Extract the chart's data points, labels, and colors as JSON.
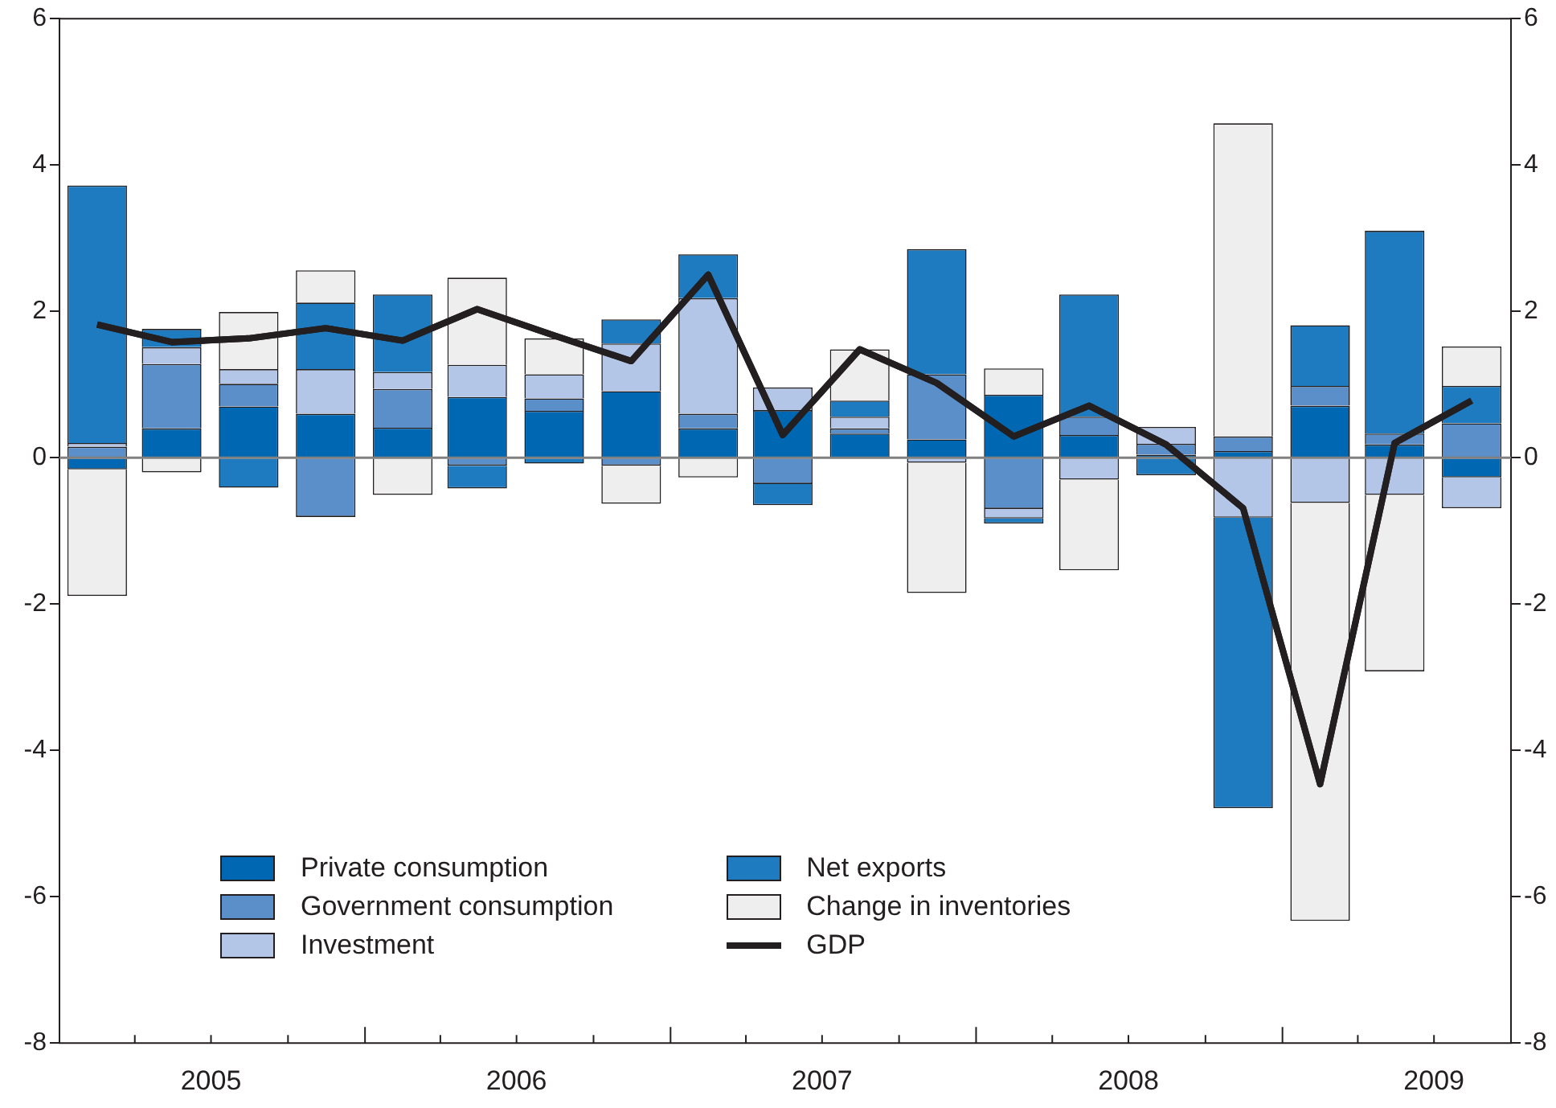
{
  "chart_data": {
    "type": "bar",
    "stacked": true,
    "x": [
      "2005-02-15",
      "2005-05-15",
      "2005-08-15",
      "2005-11-15",
      "2006-02-15",
      "2006-05-15",
      "2006-08-15",
      "2006-11-15",
      "2007-02-15",
      "2007-05-15",
      "2007-08-15",
      "2007-11-15",
      "2008-02-15",
      "2008-05-15",
      "2008-08-15",
      "2008-11-15",
      "2009-02-15",
      "2009-05-15",
      "2009-08-15"
    ],
    "xlim": [
      "2005-01",
      "2009-10"
    ],
    "xticks": [
      {
        "value": "2005-01",
        "label": null
      },
      {
        "value": "2005-04",
        "label": null
      },
      {
        "value": "2005-07",
        "label": "2005"
      },
      {
        "value": "2005-10",
        "label": null
      },
      {
        "value": "2006-01",
        "label": null
      },
      {
        "value": "2006-04",
        "label": null
      },
      {
        "value": "2006-07",
        "label": "2006"
      },
      {
        "value": "2006-10",
        "label": null
      },
      {
        "value": "2007-01",
        "label": null
      },
      {
        "value": "2007-04",
        "label": null
      },
      {
        "value": "2007-07",
        "label": "2007"
      },
      {
        "value": "2007-10",
        "label": null
      },
      {
        "value": "2008-01",
        "label": null
      },
      {
        "value": "2008-04",
        "label": null
      },
      {
        "value": "2008-07",
        "label": "2008"
      },
      {
        "value": "2008-10",
        "label": null
      },
      {
        "value": "2009-01",
        "label": null
      },
      {
        "value": "2009-04",
        "label": null
      },
      {
        "value": "2009-07",
        "label": "2009"
      },
      {
        "value": "2009-10",
        "label": null
      }
    ],
    "series": [
      {
        "name": "Private consumption",
        "color": "#0068b3",
        "values": [
          -0.16,
          0.4,
          0.7,
          0.6,
          0.41,
          0.83,
          0.64,
          0.91,
          0.4,
          0.65,
          0.33,
          0.25,
          0.86,
          0.31,
          0.04,
          0.09,
          0.71,
          0.18,
          -0.27
        ]
      },
      {
        "name": "Government consumption",
        "color": "#5b8fca",
        "values": [
          0.15,
          0.88,
          0.31,
          -0.81,
          0.53,
          -0.11,
          0.17,
          -0.11,
          0.2,
          -0.36,
          0.07,
          0.89,
          -0.7,
          0.25,
          0.15,
          0.2,
          0.27,
          0.15,
          0.47
        ]
      },
      {
        "name": "Investment",
        "color": "#b3c6e7",
        "values": [
          0.05,
          0.23,
          0.2,
          0.61,
          0.23,
          0.44,
          0.33,
          0.65,
          1.58,
          0.31,
          0.16,
          -0.07,
          -0.13,
          -0.3,
          0.23,
          -0.82,
          -0.62,
          -0.51,
          -0.42
        ]
      },
      {
        "name": "Net exports",
        "color": "#1f7bc0",
        "values": [
          3.52,
          0.25,
          -0.41,
          0.91,
          1.06,
          -0.31,
          -0.08,
          0.33,
          0.6,
          -0.29,
          0.22,
          1.71,
          -0.07,
          1.67,
          -0.24,
          -3.97,
          0.83,
          2.77,
          0.51
        ]
      },
      {
        "name": "Change in inventories",
        "color": "#eeeeee",
        "values": [
          -1.73,
          -0.2,
          0.78,
          0.44,
          -0.51,
          1.19,
          0.49,
          -0.52,
          -0.27,
          null,
          0.7,
          -1.78,
          0.36,
          -1.24,
          null,
          4.28,
          -5.71,
          -2.41,
          0.54
        ]
      },
      {
        "name": "GDP",
        "type": "line",
        "color": "#231f20",
        "marker": "none",
        "values": [
          1.82,
          1.58,
          1.63,
          1.77,
          1.6,
          2.03,
          1.67,
          1.32,
          2.5,
          0.31,
          1.48,
          1.02,
          0.29,
          0.71,
          0.18,
          -0.69,
          -4.46,
          0.2,
          0.78
        ]
      }
    ],
    "ylim": [
      -8,
      6
    ],
    "yticks": [
      -8,
      -6,
      -4,
      -2,
      0,
      2,
      4,
      6
    ],
    "y2lim": [
      -8,
      6
    ],
    "y2ticks": [
      -8,
      -6,
      -4,
      -2,
      0,
      2,
      4,
      6
    ],
    "legend": "bottom left",
    "ref_lines": [
      {
        "axis": "y",
        "value": 0,
        "color": "#808080"
      }
    ]
  }
}
